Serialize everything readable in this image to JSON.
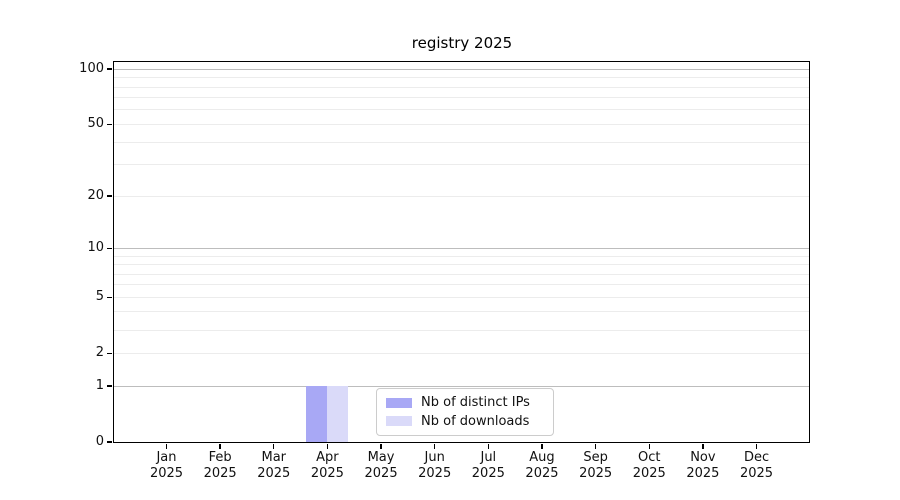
{
  "chart_data": {
    "type": "bar",
    "title": "registry 2025",
    "x_axis": {
      "months": [
        "Jan",
        "Feb",
        "Mar",
        "Apr",
        "May",
        "Jun",
        "Jul",
        "Aug",
        "Sep",
        "Oct",
        "Nov",
        "Dec"
      ],
      "year": "2025"
    },
    "y_axis": {
      "scale": "log10(1+value)",
      "ticks": [
        0,
        1,
        2,
        5,
        10,
        20,
        50,
        100
      ],
      "range": [
        0,
        110
      ],
      "major_gridlines": [
        1,
        10,
        100
      ],
      "minor_gridlines": [
        2,
        3,
        4,
        5,
        6,
        7,
        8,
        9,
        20,
        30,
        40,
        50,
        60,
        70,
        80,
        90
      ]
    },
    "series": [
      {
        "name": "Nb of distinct IPs",
        "color": "#a8a8f5",
        "values": [
          0,
          0,
          0,
          1,
          0,
          0,
          0,
          0,
          0,
          0,
          0,
          0
        ]
      },
      {
        "name": "Nb of downloads",
        "color": "#dadaf9",
        "values": [
          0,
          0,
          0,
          1,
          0,
          0,
          0,
          0,
          0,
          0,
          0,
          0
        ]
      }
    ],
    "legend": {
      "position": "lower center",
      "items": [
        "Nb of distinct IPs",
        "Nb of downloads"
      ]
    },
    "colors": {
      "background": "#ffffff",
      "spine": "#000000",
      "text": "#111111",
      "major_grid": "#bdbdbd",
      "minor_grid": "#ececec"
    }
  }
}
